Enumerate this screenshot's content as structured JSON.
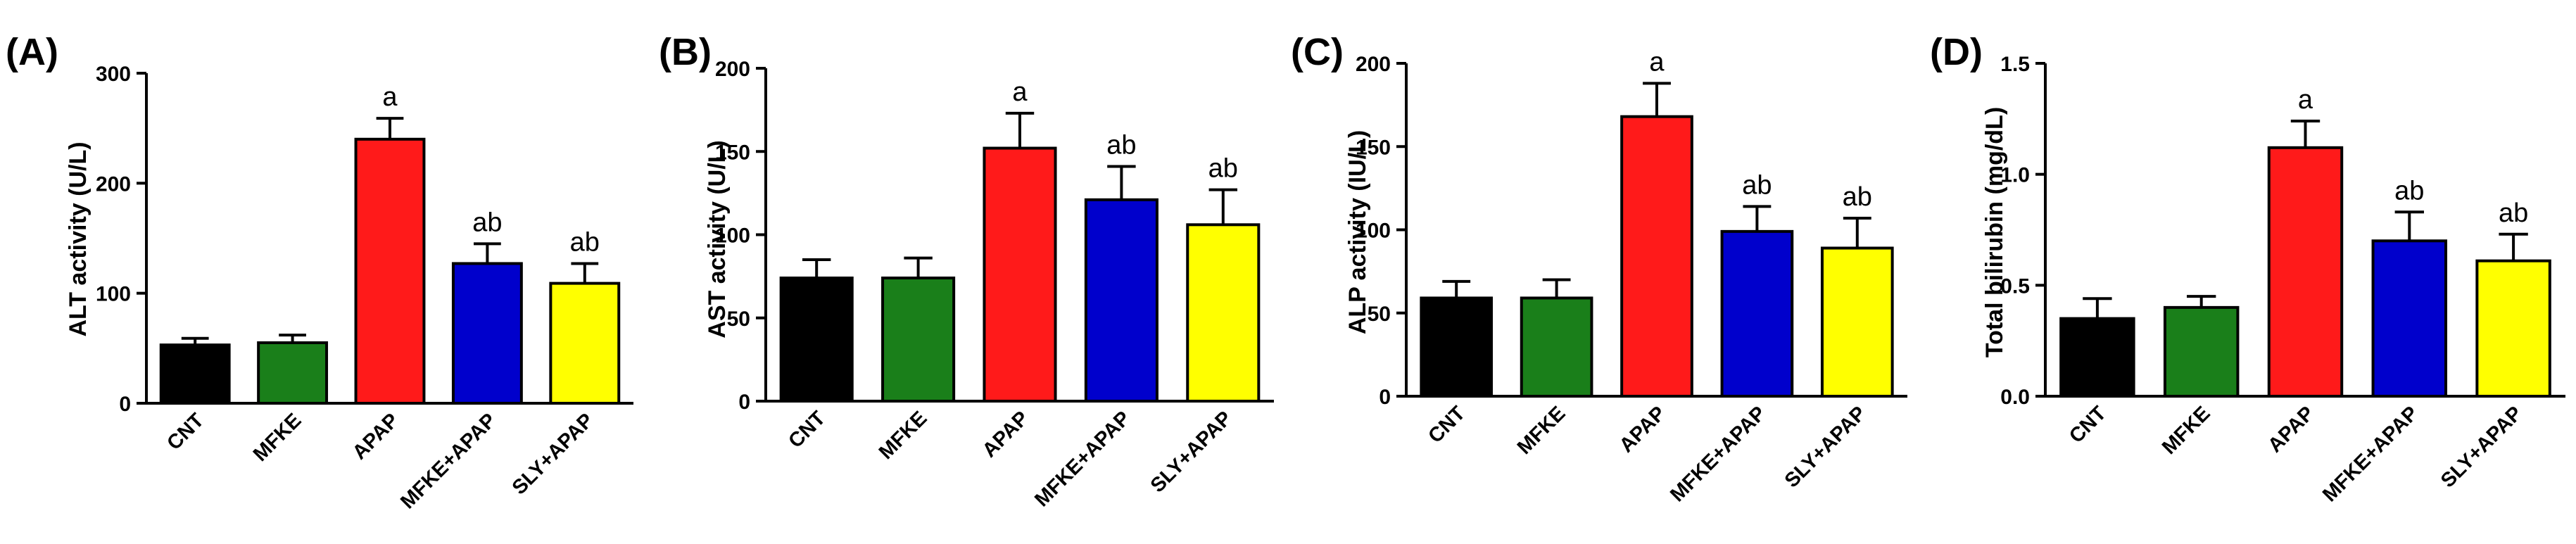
{
  "chart_data": [
    {
      "type": "bar",
      "panel": "(A)",
      "title": "",
      "xlabel": "",
      "ylabel": "ALT activity (U/L)",
      "ylim": [
        0,
        300
      ],
      "yticks": [
        "0",
        "100",
        "200",
        "300"
      ],
      "categories": [
        "CNT",
        "MFKE",
        "APAP",
        "MFKE+APAP",
        "SLY+APAP"
      ],
      "values": [
        53,
        55,
        240,
        127,
        109
      ],
      "errors": [
        6,
        7,
        19,
        18,
        18
      ],
      "annotations": [
        "",
        "",
        "a",
        "ab",
        "ab"
      ],
      "colors": [
        "#000000",
        "#1a7f1a",
        "#ff1a1a",
        "#0000cc",
        "#ffff00"
      ]
    },
    {
      "type": "bar",
      "panel": "(B)",
      "title": "",
      "xlabel": "",
      "ylabel": "AST activity (U/L)",
      "ylim": [
        0,
        200
      ],
      "yticks": [
        "0",
        "50",
        "100",
        "150",
        "200"
      ],
      "categories": [
        "CNT",
        "MFKE",
        "APAP",
        "MFKE+APAP",
        "SLY+APAP"
      ],
      "values": [
        74,
        74,
        152,
        121,
        106
      ],
      "errors": [
        11,
        12,
        21,
        20,
        21
      ],
      "annotations": [
        "",
        "",
        "a",
        "ab",
        "ab"
      ],
      "colors": [
        "#000000",
        "#1a7f1a",
        "#ff1a1a",
        "#0000cc",
        "#ffff00"
      ]
    },
    {
      "type": "bar",
      "panel": "(C)",
      "title": "",
      "xlabel": "",
      "ylabel": "ALP activity (IU/L)",
      "ylim": [
        0,
        200
      ],
      "yticks": [
        "0",
        "50",
        "100",
        "150",
        "200"
      ],
      "categories": [
        "CNT",
        "MFKE",
        "APAP",
        "MFKE+APAP",
        "SLY+APAP"
      ],
      "values": [
        59,
        59,
        168,
        99,
        89
      ],
      "errors": [
        10,
        11,
        20,
        15,
        18
      ],
      "annotations": [
        "",
        "",
        "a",
        "ab",
        "ab"
      ],
      "colors": [
        "#000000",
        "#1a7f1a",
        "#ff1a1a",
        "#0000cc",
        "#ffff00"
      ]
    },
    {
      "type": "bar",
      "panel": "(D)",
      "title": "",
      "xlabel": "",
      "ylabel": "Total bilirubin (mg/dL)",
      "ylim": [
        0,
        1.5
      ],
      "yticks": [
        "0.0",
        "0.5",
        "1.0",
        "1.5"
      ],
      "categories": [
        "CNT",
        "MFKE",
        "APAP",
        "MFKE+APAP",
        "SLY+APAP"
      ],
      "values": [
        0.35,
        0.4,
        1.12,
        0.7,
        0.61
      ],
      "errors": [
        0.09,
        0.05,
        0.12,
        0.13,
        0.12
      ],
      "annotations": [
        "",
        "",
        "a",
        "ab",
        "ab"
      ],
      "colors": [
        "#000000",
        "#1a7f1a",
        "#ff1a1a",
        "#0000cc",
        "#ffff00"
      ]
    }
  ]
}
